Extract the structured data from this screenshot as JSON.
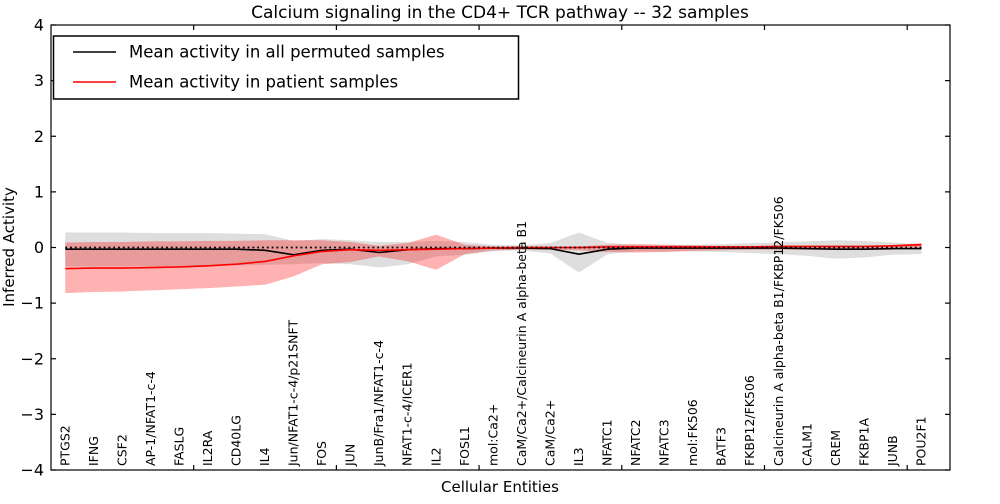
{
  "chart_data": {
    "type": "line",
    "title": "Calcium signaling in the CD4+ TCR pathway -- 32 samples",
    "xlabel": "Cellular Entities",
    "ylabel": "Inferred Activity",
    "ylim": [
      -4,
      4
    ],
    "xdomain": [
      0,
      31.5
    ],
    "grid": false,
    "legend_position": "upper left",
    "background_color": "#ffffff",
    "axis_color": "#000000",
    "yticks": [
      4,
      3,
      2,
      1,
      0,
      -1,
      -2,
      -3,
      -4
    ],
    "ytick_labels": [
      "4",
      "3",
      "2",
      "1",
      "0",
      "−1",
      "−2",
      "−3",
      "−4"
    ],
    "xticks_numeric": [
      5,
      10,
      15,
      20,
      25,
      30
    ],
    "categories": [
      "PTGS2",
      "IFNG",
      "CSF2",
      "AP-1/NFAT1-c-4",
      "FASLG",
      "IL2RA",
      "CD40LG",
      "IL4",
      "Jun/NFAT1-c-4/p21SNFT",
      "FOS",
      "JUN",
      "JunB/Fra1/NFAT1-c-4",
      "NFAT1-c-4/ICER1",
      "IL2",
      "FOSL1",
      "mol:Ca2+",
      "CaM/Ca2+/Calcineurin A alpha-beta B1",
      "CaM/Ca2+",
      "IL3",
      "NFATC1",
      "NFATC2",
      "NFATC3",
      "mol:FK506",
      "BATF3",
      "FKBP12/FK506",
      "Calcineurin A alpha-beta B1/FKBP12/FK506",
      "CALM1",
      "CREM",
      "FKBP1A",
      "JUNB",
      "POU2F1"
    ],
    "zero_line": {
      "y": 0,
      "style": "dotted",
      "color": "#000000"
    },
    "series": [
      {
        "name": "Mean activity in all permuted samples",
        "color": "#000000",
        "band_color": "#000000",
        "band_opacity": 0.13,
        "values": [
          -0.03,
          -0.03,
          -0.03,
          -0.03,
          -0.03,
          -0.03,
          -0.03,
          -0.05,
          -0.13,
          -0.05,
          -0.03,
          -0.09,
          -0.04,
          -0.02,
          -0.02,
          -0.01,
          -0.01,
          -0.02,
          -0.12,
          -0.03,
          -0.01,
          -0.01,
          -0.01,
          -0.01,
          -0.01,
          -0.01,
          -0.02,
          -0.03,
          -0.03,
          -0.02,
          -0.02
        ],
        "band_upper": [
          0.27,
          0.27,
          0.27,
          0.26,
          0.26,
          0.26,
          0.25,
          0.24,
          0.12,
          0.15,
          0.13,
          0.1,
          0.1,
          0.12,
          0.1,
          0.05,
          0.04,
          0.08,
          0.27,
          0.08,
          0.05,
          0.05,
          0.05,
          0.06,
          0.08,
          0.09,
          0.11,
          0.13,
          0.12,
          0.09,
          0.06
        ],
        "band_lower": [
          -0.34,
          -0.34,
          -0.34,
          -0.34,
          -0.33,
          -0.33,
          -0.32,
          -0.31,
          -0.3,
          -0.28,
          -0.3,
          -0.36,
          -0.3,
          -0.16,
          -0.13,
          -0.07,
          -0.05,
          -0.11,
          -0.45,
          -0.12,
          -0.07,
          -0.07,
          -0.07,
          -0.08,
          -0.1,
          -0.12,
          -0.15,
          -0.2,
          -0.18,
          -0.13,
          -0.12
        ]
      },
      {
        "name": "Mean activity in patient samples",
        "color": "#ff0000",
        "band_color": "#ff0000",
        "band_opacity": 0.3,
        "values": [
          -0.38,
          -0.37,
          -0.37,
          -0.36,
          -0.35,
          -0.33,
          -0.3,
          -0.25,
          -0.15,
          -0.07,
          -0.04,
          -0.05,
          -0.04,
          -0.03,
          -0.02,
          -0.01,
          0.0,
          0.0,
          0.0,
          0.01,
          0.01,
          0.01,
          0.01,
          0.01,
          0.01,
          0.02,
          0.02,
          0.02,
          0.02,
          0.03,
          0.05
        ],
        "band_upper": [
          0.09,
          0.1,
          0.1,
          0.11,
          0.11,
          0.12,
          0.12,
          0.13,
          0.13,
          0.13,
          0.1,
          0.03,
          0.08,
          0.23,
          0.05,
          0.02,
          0.02,
          0.02,
          0.02,
          0.05,
          0.06,
          0.05,
          0.04,
          0.03,
          0.03,
          0.03,
          0.03,
          0.03,
          0.03,
          0.04,
          0.08
        ],
        "band_lower": [
          -0.82,
          -0.8,
          -0.79,
          -0.77,
          -0.75,
          -0.73,
          -0.7,
          -0.67,
          -0.52,
          -0.3,
          -0.26,
          -0.16,
          -0.25,
          -0.4,
          -0.12,
          -0.05,
          -0.04,
          -0.04,
          -0.05,
          -0.08,
          -0.09,
          -0.08,
          -0.06,
          -0.05,
          -0.04,
          -0.04,
          -0.04,
          -0.04,
          -0.04,
          -0.04,
          -0.02
        ]
      }
    ]
  }
}
